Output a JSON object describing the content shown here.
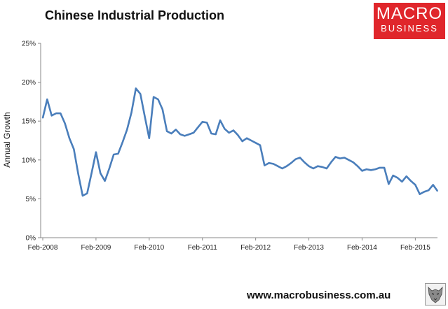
{
  "branding": {
    "logo_line1": "MACRO",
    "logo_line2": "BUSINESS",
    "website": "www.macrobusiness.com.au",
    "logo_color": "#e0262b",
    "mascot_icon": "wolf-icon"
  },
  "chart_data": {
    "type": "line",
    "title": "Chinese Industrial Production",
    "ylabel": "Annual Growth",
    "xlabel": "",
    "ylim": [
      0,
      25
    ],
    "yticks": [
      "0%",
      "5%",
      "10%",
      "15%",
      "20%",
      "25%"
    ],
    "xticks": [
      "Feb-2008",
      "Feb-2009",
      "Feb-2010",
      "Feb-2011",
      "Feb-2012",
      "Feb-2013",
      "Feb-2014",
      "Feb-2015"
    ],
    "grid": false,
    "line_color": "#4a7ebb",
    "series": [
      {
        "values": [
          15.4,
          17.8,
          15.7,
          16.0,
          16.0,
          14.7,
          12.8,
          11.4,
          8.2,
          5.4,
          5.7,
          8.3,
          11.0,
          8.3,
          7.3,
          8.9,
          10.7,
          10.8,
          12.3,
          13.9,
          16.1,
          19.2,
          18.5,
          15.6,
          12.8,
          18.1,
          17.8,
          16.5,
          13.7,
          13.4,
          13.9,
          13.3,
          13.1,
          13.3,
          13.5,
          14.2,
          14.9,
          14.8,
          13.4,
          13.3,
          15.1,
          14.0,
          13.5,
          13.8,
          13.2,
          12.4,
          12.8,
          12.5,
          12.2,
          11.9,
          9.3,
          9.6,
          9.5,
          9.2,
          8.9,
          9.2,
          9.6,
          10.1,
          10.3,
          9.7,
          9.2,
          8.9,
          9.2,
          9.1,
          8.9,
          9.7,
          10.4,
          10.2,
          10.3,
          10.0,
          9.7,
          9.2,
          8.6,
          8.8,
          8.7,
          8.8,
          9.0,
          9.0,
          6.9,
          8.0,
          7.7,
          7.2,
          7.9,
          7.3,
          6.8,
          5.6,
          5.9,
          6.1,
          6.8,
          6.0
        ]
      }
    ]
  }
}
